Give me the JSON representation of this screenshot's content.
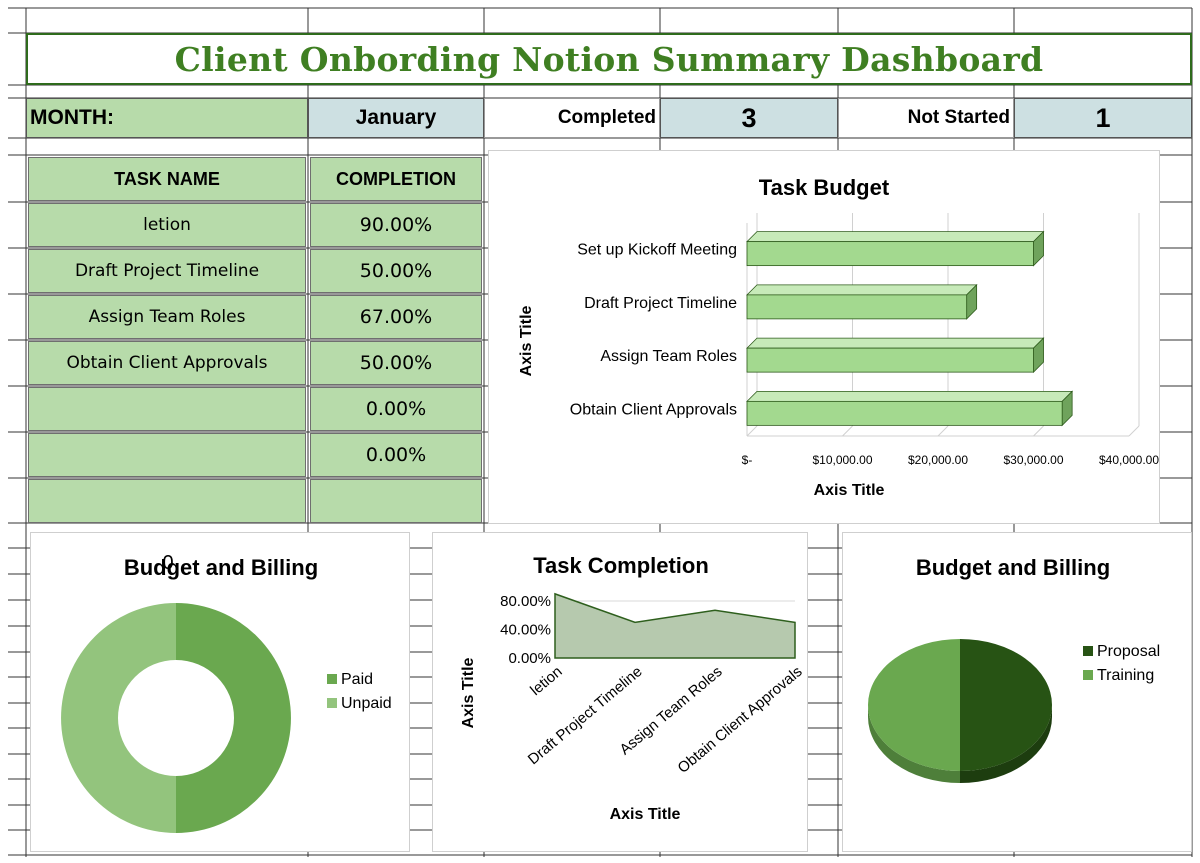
{
  "title": "Client Onbording Notion Summary Dashboard",
  "month_label": "MONTH:",
  "month_value": "January",
  "completed_label": "Completed",
  "completed_value": "3",
  "not_started_label": "Not Started",
  "not_started_value": "1",
  "table": {
    "headers": [
      "TASK NAME",
      "COMPLETION"
    ],
    "rows": [
      {
        "name": "letion",
        "completion": "90.00%"
      },
      {
        "name": "Draft Project Timeline",
        "completion": "50.00%"
      },
      {
        "name": "Assign Team Roles",
        "completion": "67.00%"
      },
      {
        "name": "Obtain Client Approvals",
        "completion": "50.00%"
      },
      {
        "name": "",
        "completion": "0.00%"
      },
      {
        "name": "",
        "completion": "0.00%"
      },
      {
        "name": "",
        "completion": ""
      }
    ]
  },
  "colors": {
    "title_green": "#3f7f22",
    "cell_green": "#b7dbaa",
    "cell_blue": "#cde0e2",
    "bar_green": "#a3d98f",
    "dark_green": "#275314",
    "mid_green": "#6aa84f",
    "light_green": "#93c47d"
  },
  "chart_data": [
    {
      "type": "bar",
      "title": "Task Budget",
      "orientation": "horizontal",
      "categories": [
        "Set up Kickoff Meeting",
        "Draft Project Timeline",
        "Assign Team Roles",
        "Obtain Client Approvals"
      ],
      "values": [
        30000,
        23000,
        30000,
        33000
      ],
      "xlabel": "Axis Title",
      "ylabel": "Axis Title",
      "xlim": [
        0,
        40000
      ],
      "tick_labels": [
        "$-",
        "$10,000.00",
        "$20,000.00",
        "$30,000.00",
        "$40,000.00"
      ],
      "grid": true
    },
    {
      "type": "pie",
      "title": "Budget and Billing",
      "overlay_label": "0",
      "style": "donut",
      "labels": [
        "Paid",
        "Unpaid"
      ],
      "values": [
        50,
        50
      ],
      "legend": "right"
    },
    {
      "type": "area",
      "title": "Task Completion",
      "categories": [
        "letion",
        "Draft Project Timeline",
        "Assign Team Roles",
        "Obtain Client Approvals"
      ],
      "values": [
        0.9,
        0.5,
        0.67,
        0.5
      ],
      "ylim": [
        0,
        0.8
      ],
      "tick_labels": [
        "0.00%",
        "40.00%",
        "80.00%"
      ],
      "xlabel": "Axis Title",
      "ylabel": "Axis Title"
    },
    {
      "type": "pie",
      "title": "Budget and Billing",
      "labels": [
        "Proposal",
        "Training"
      ],
      "values": [
        50,
        50
      ],
      "legend": "right",
      "style": "3d"
    }
  ]
}
